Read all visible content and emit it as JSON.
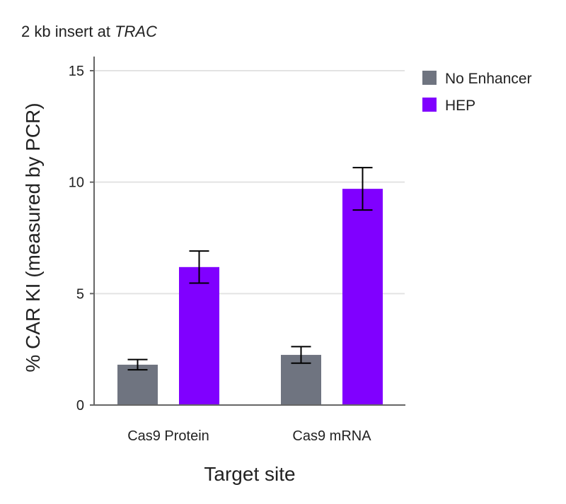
{
  "chart_data": {
    "type": "bar",
    "title": "2 kb insert at ",
    "title_italic": "TRAC",
    "xlabel": "Target site",
    "ylabel": "% CAR KI (measured by PCR)",
    "ylim": [
      0,
      15
    ],
    "yticks": [
      0,
      5,
      10,
      15
    ],
    "grid": true,
    "legend_position": "top-right",
    "categories": [
      "Cas9 Protein",
      "Cas9 mRNA"
    ],
    "series": [
      {
        "name": "No Enhancer",
        "color": "#6f7480",
        "values": [
          1.81,
          2.25
        ],
        "errors": [
          0.23,
          0.37
        ]
      },
      {
        "name": "HEP",
        "color": "#8000ff",
        "values": [
          6.19,
          9.7
        ],
        "errors": [
          0.72,
          0.95
        ]
      }
    ]
  }
}
